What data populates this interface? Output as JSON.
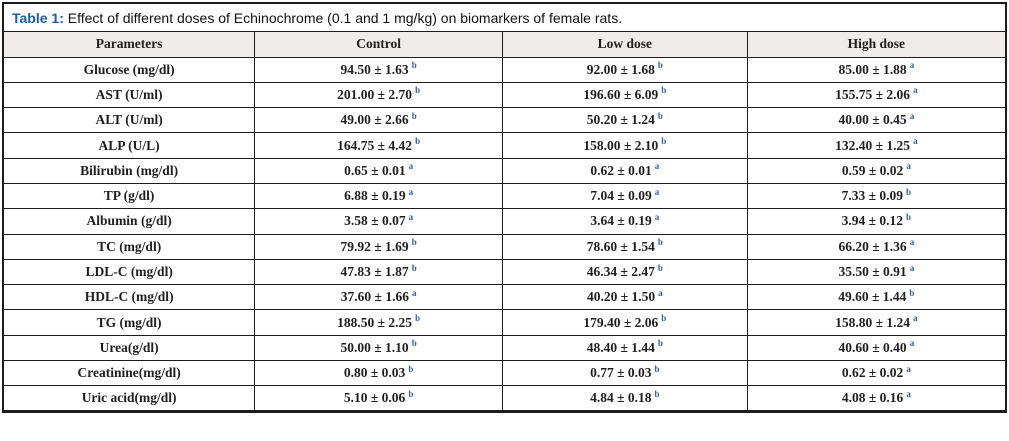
{
  "table": {
    "title": {
      "label": "Table 1:",
      "text": " Effect of different doses of Echinochrome (0.1 and 1 mg/kg) on biomarkers of female rats."
    },
    "columns": [
      "Parameters",
      "Control",
      "Low dose",
      "High dose"
    ],
    "rows": [
      {
        "parameter": "Glucose (mg/dl)",
        "control": {
          "value": "94.50 ± 1.63",
          "sup": "b"
        },
        "low_dose": {
          "value": "92.00 ± 1.68",
          "sup": "b"
        },
        "high_dose": {
          "value": "85.00 ± 1.88",
          "sup": "a"
        }
      },
      {
        "parameter": "AST (U/ml)",
        "control": {
          "value": "201.00 ± 2.70",
          "sup": "b"
        },
        "low_dose": {
          "value": "196.60 ± 6.09",
          "sup": "b"
        },
        "high_dose": {
          "value": "155.75 ± 2.06",
          "sup": "a"
        }
      },
      {
        "parameter": "ALT (U/ml)",
        "control": {
          "value": "49.00 ± 2.66",
          "sup": "b"
        },
        "low_dose": {
          "value": "50.20 ± 1.24",
          "sup": "b"
        },
        "high_dose": {
          "value": "40.00 ± 0.45",
          "sup": "a"
        }
      },
      {
        "parameter": "ALP (U/L)",
        "control": {
          "value": "164.75 ± 4.42",
          "sup": "b"
        },
        "low_dose": {
          "value": "158.00 ± 2.10",
          "sup": "b"
        },
        "high_dose": {
          "value": "132.40 ± 1.25",
          "sup": "a"
        }
      },
      {
        "parameter": "Bilirubin (mg/dl)",
        "control": {
          "value": "0.65 ± 0.01",
          "sup": "a"
        },
        "low_dose": {
          "value": "0.62 ± 0.01",
          "sup": "a"
        },
        "high_dose": {
          "value": "0.59 ± 0.02",
          "sup": "a"
        }
      },
      {
        "parameter": "TP (g/dl)",
        "control": {
          "value": "6.88 ± 0.19",
          "sup": "a"
        },
        "low_dose": {
          "value": "7.04 ± 0.09",
          "sup": "a"
        },
        "high_dose": {
          "value": "7.33 ± 0.09",
          "sup": "b"
        }
      },
      {
        "parameter": "Albumin (g/dl)",
        "control": {
          "value": "3.58 ± 0.07",
          "sup": "a"
        },
        "low_dose": {
          "value": "3.64 ± 0.19",
          "sup": "a"
        },
        "high_dose": {
          "value": "3.94 ± 0.12",
          "sup": "b"
        }
      },
      {
        "parameter": "TC (mg/dl)",
        "control": {
          "value": "79.92 ± 1.69",
          "sup": "b"
        },
        "low_dose": {
          "value": "78.60 ± 1.54",
          "sup": "b"
        },
        "high_dose": {
          "value": "66.20 ± 1.36",
          "sup": "a"
        }
      },
      {
        "parameter": "LDL-C (mg/dl)",
        "control": {
          "value": "47.83 ± 1.87",
          "sup": "b"
        },
        "low_dose": {
          "value": "46.34 ± 2.47",
          "sup": "b"
        },
        "high_dose": {
          "value": "35.50 ± 0.91",
          "sup": "a"
        }
      },
      {
        "parameter": "HDL-C (mg/dl)",
        "control": {
          "value": "37.60 ± 1.66",
          "sup": "a"
        },
        "low_dose": {
          "value": "40.20 ± 1.50",
          "sup": "a"
        },
        "high_dose": {
          "value": "49.60 ± 1.44",
          "sup": "b"
        }
      },
      {
        "parameter": "TG (mg/dl)",
        "control": {
          "value": "188.50 ± 2.25",
          "sup": "b"
        },
        "low_dose": {
          "value": "179.40 ± 2.06",
          "sup": "b"
        },
        "high_dose": {
          "value": "158.80 ± 1.24",
          "sup": "a"
        }
      },
      {
        "parameter": "Urea(g/dl)",
        "control": {
          "value": "50.00 ± 1.10",
          "sup": "b"
        },
        "low_dose": {
          "value": "48.40 ± 1.44",
          "sup": "b"
        },
        "high_dose": {
          "value": "40.60 ± 0.40",
          "sup": "a"
        }
      },
      {
        "parameter": "Creatinine(mg/dl)",
        "control": {
          "value": "0.80 ± 0.03",
          "sup": "b"
        },
        "low_dose": {
          "value": "0.77 ± 0.03",
          "sup": "b"
        },
        "high_dose": {
          "value": "0.62 ± 0.02",
          "sup": "a"
        }
      },
      {
        "parameter": "Uric acid(mg/dl)",
        "control": {
          "value": "5.10 ± 0.06",
          "sup": "b"
        },
        "low_dose": {
          "value": "4.84 ± 0.18",
          "sup": "b"
        },
        "high_dose": {
          "value": "4.08 ± 0.16",
          "sup": "a"
        }
      }
    ],
    "accent_colors": {
      "title_label_blue": "#1d5aa8",
      "superscript_blue": "#2e5f9e",
      "header_background": "#efeceb",
      "border": "#1c1c1c"
    }
  }
}
